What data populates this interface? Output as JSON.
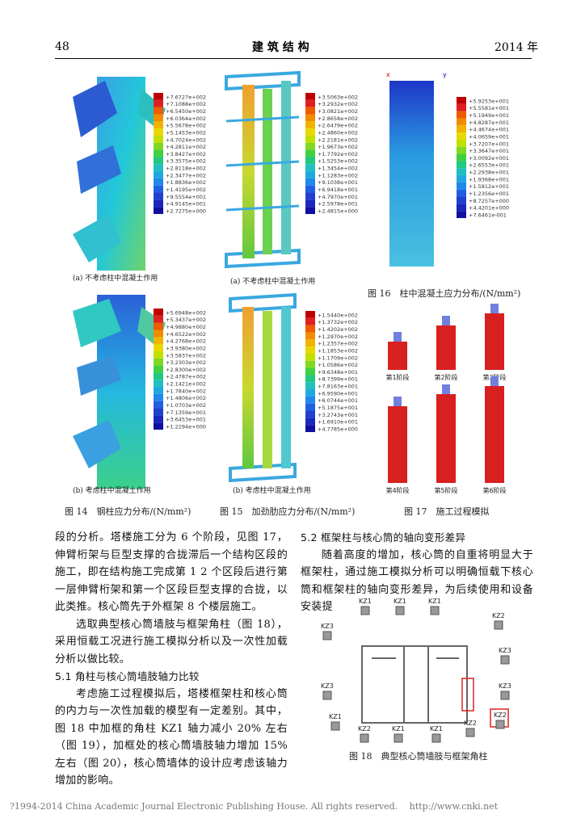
{
  "header": {
    "page": "48",
    "journal": "建 筑 结 构",
    "year": "2014 年"
  },
  "figures": {
    "fig14": {
      "caption": "图 14　钢柱应力分布/(N/mm²)",
      "a": "(a) 不考虑柱中混凝土作用",
      "b": "(b) 考虑柱中混凝土作用",
      "legend_a": [
        "+7.6727e+002",
        "+7.1088e+002",
        "+6.5450e+002",
        "+6.0364e+002",
        "+5.5678e+002",
        "+5.1453e+002",
        "+4.7024e+002",
        "+4.2811e+002",
        "+3.8427e+002",
        "+3.3575e+002",
        "+2.8118e+002",
        "+2.3477e+002",
        "+1.8836e+002",
        "+1.4195e+002",
        "+9.5554e+001",
        "+4.9145e+001",
        "+2.7275e+000"
      ],
      "legend_b": [
        "+5.6948e+002",
        "+5.3437e+002",
        "+4.9880e+002",
        "+4.6522e+002",
        "+4.2768e+002",
        "+3.9380e+002",
        "+3.5837e+002",
        "+3.2303e+002",
        "+2.8300e+002",
        "+2.4787e+002",
        "+2.1421e+002",
        "+1.7840e+002",
        "+1.4806e+002",
        "+1.0703e+002",
        "+7.1359e+001",
        "+3.6453e+001",
        "+1.2294e+000"
      ]
    },
    "fig15": {
      "caption": "图 15　加劲肋应力分布/(N/mm²)",
      "a": "(a) 不考虑柱中混凝土作用",
      "b": "(b) 考虑柱中混凝土作用",
      "legend_a": [
        "+3.5063e+002",
        "+3.2932e+002",
        "+3.0821e+002",
        "+2.8658e+002",
        "+2.6479e+002",
        "+2.4860e+002",
        "+2.2181e+002",
        "+1.9673e+002",
        "+1.7792e+002",
        "+1.5253e+002",
        "+1.3454e+002",
        "+1.1283e+002",
        "+9.1038e+001",
        "+6.9418e+001",
        "+4.7970e+001",
        "+2.5978e+001",
        "+2.4815e+000"
      ],
      "legend_b": [
        "+1.5440e+002",
        "+1.3732e+002",
        "+1.4202e+002",
        "+1.2970e+002",
        "+1.2357e+002",
        "+1.1853e+002",
        "+1.1709e+002",
        "+1.0586e+002",
        "+9.6348e+001",
        "+8.7399e+001",
        "+7.8163e+001",
        "+6.9590e+001",
        "+6.0744e+001",
        "+5.1875e+001",
        "+3.2743e+001",
        "+1.6910e+001",
        "+4.7785e+000"
      ]
    },
    "fig16": {
      "caption": "图 16　柱中混凝土应力分布/(N/mm²)",
      "legend": [
        "+5.9253e+001",
        "+5.5581e+001",
        "+5.1949e+001",
        "+4.8287e+001",
        "+4.4674e+001",
        "+4.0659e+001",
        "+3.7207e+001",
        "+3.3647e+001",
        "+3.0092e+001",
        "+2.6553e+001",
        "+2.2938e+001",
        "+1.9368e+001",
        "+1.5812e+001",
        "+1.2356e+001",
        "+8.7257e+000",
        "+4.4201e+000",
        "+7.6461e-001"
      ]
    },
    "fig17": {
      "caption": "图 17　施工过程模拟",
      "stages": [
        "第1阶段",
        "第2阶段",
        "第3阶段",
        "第4阶段",
        "第5阶段",
        "第6阶段"
      ]
    },
    "fig18": {
      "caption": "图 18　典型核心筒墙肢与框架角柱",
      "labels": [
        "KZ1",
        "KZ1",
        "KZ1",
        "KZ2",
        "KZ2",
        "KZ3",
        "KZ3",
        "KZ3",
        "KZ3",
        "KZ1",
        "KZ1",
        "KZ1",
        "KZ2",
        "KZ2"
      ]
    }
  },
  "body": {
    "left": [
      "段的分析。塔楼施工分为 6 个阶段，见图 17，伸臂桁架与巨型支撑的合拢滞后一个结构区段的施工，即在结构施工完成第 1 2 个区段后进行第一层伸臂桁架和第一个区段巨型支撑的合拢，以此类推。核心筒先于外框架 8 个楼层施工。",
      "选取典型核心筒墙肢与框架角柱（图 18），采用恒载工况进行施工模拟分析以及一次性加载分析以做比较。"
    ],
    "heading_51": "5.1 角柱与核心筒墙肢轴力比较",
    "para_51": "考虑施工过程模拟后，塔楼框架柱和核心筒的内力与一次性加载的模型有一定差别。其中，图 18 中加框的角柱 KZ1 轴力减小 20% 左右（图 19），加框处的核心筒墙肢轴力增加 15% 左右（图 20），核心筒墙体的设计应考虑该轴力增加的影响。",
    "heading_52": "5.2 框架柱与核心筒的轴向变形差异",
    "para_52": "随着高度的增加，核心筒的自重将明显大于框架柱，通过施工模拟分析可以明确恒载下核心筒和框架柱的轴向变形差异，为后续使用和设备安装提"
  },
  "footer": "?1994-2014 China Academic Journal Electronic Publishing House. All rights reserved.　 http://www.cnki.net"
}
